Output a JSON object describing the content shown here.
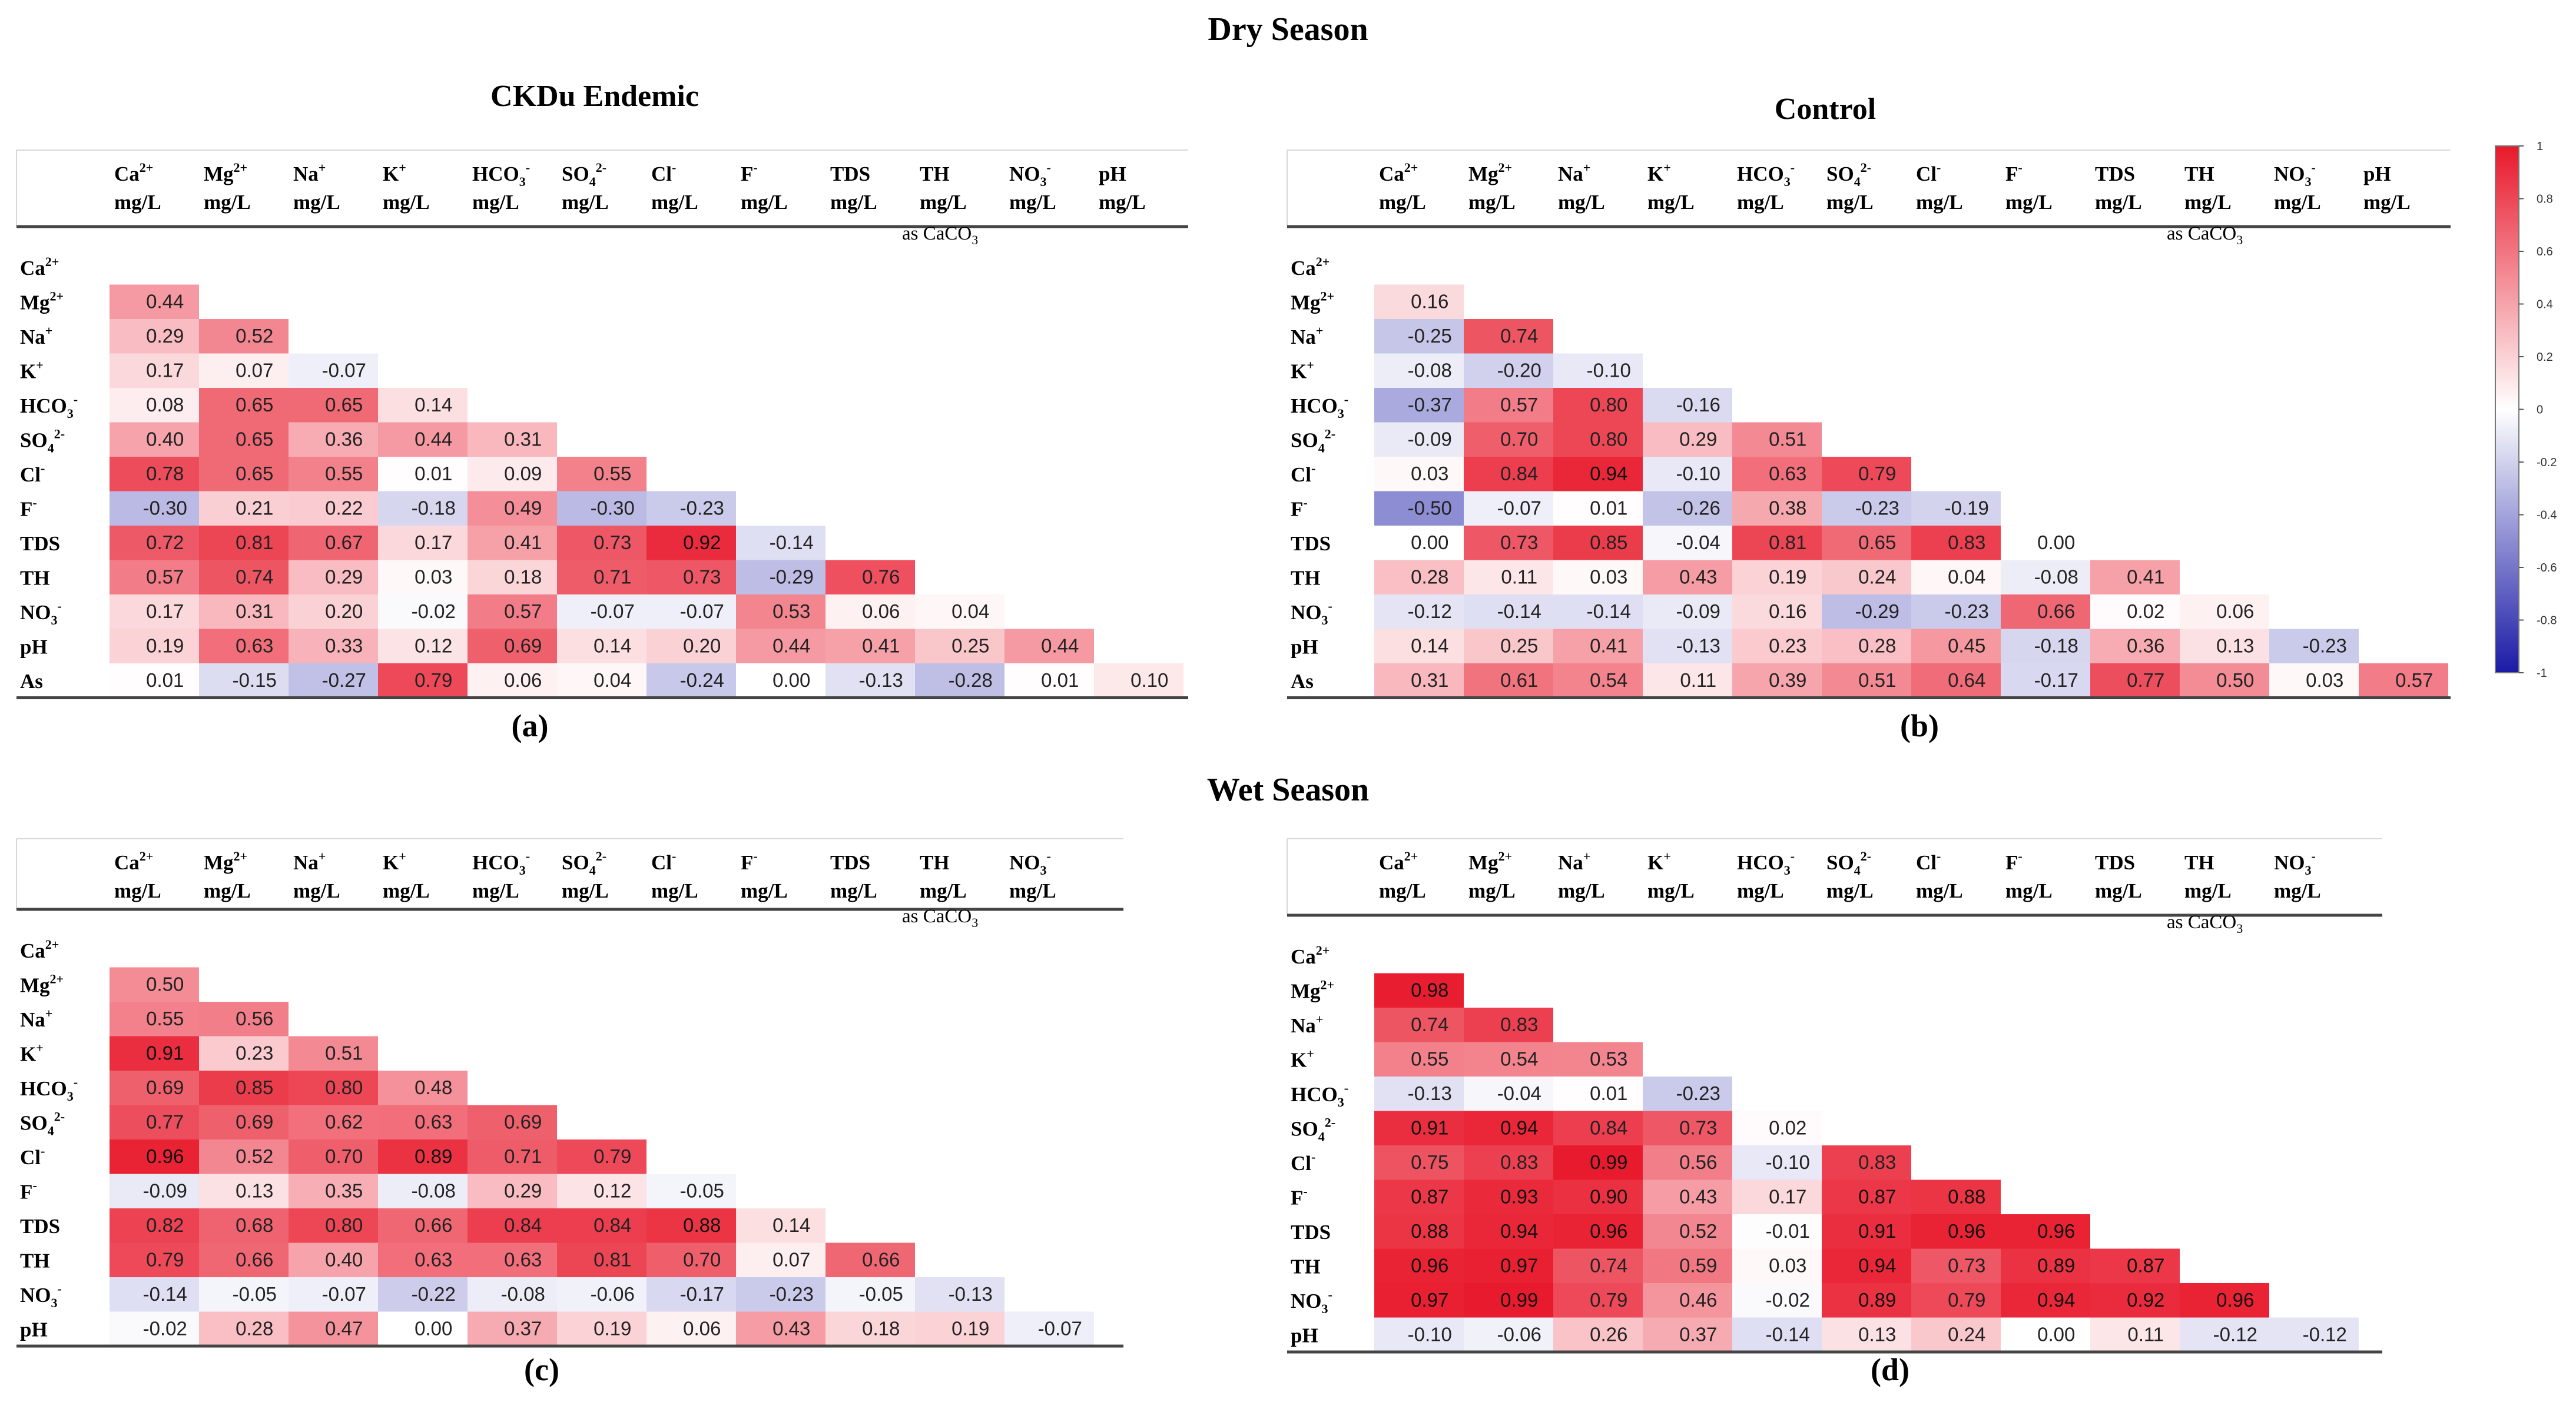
{
  "titles": {
    "dry_season": "Dry Season",
    "wet_season": "Wet Season",
    "ckdu_endemic": "CKDu Endemic",
    "control": "Control"
  },
  "panel_labels": [
    "(a)",
    "(b)",
    "(c)",
    "(d)"
  ],
  "colorbar": {
    "range": [
      -1,
      1
    ],
    "ticks": [
      "1",
      "0.8",
      "0.6",
      "0.4",
      "0.2",
      "0",
      "-0.2",
      "-0.4",
      "-0.6",
      "-0.8",
      "-1"
    ],
    "colors": {
      "positive": "#e8192c",
      "neutral": "#ffffff",
      "negative": "#1a1aa6"
    }
  },
  "chart_data": [
    {
      "type": "heatmap",
      "title": "CKDu Endemic",
      "season": "Dry Season",
      "panel": "(a)",
      "columns": [
        {
          "top": "Ca2+",
          "unit": "mg/L"
        },
        {
          "top": "Mg2+",
          "unit": "mg/L"
        },
        {
          "top": "Na+",
          "unit": "mg/L"
        },
        {
          "top": "K+",
          "unit": "mg/L"
        },
        {
          "top": "HCO3-",
          "unit": "mg/L"
        },
        {
          "top": "SO42-",
          "unit": "mg/L"
        },
        {
          "top": "Cl-",
          "unit": "mg/L"
        },
        {
          "top": "F-",
          "unit": "mg/L"
        },
        {
          "top": "TDS",
          "unit": "mg/L"
        },
        {
          "top": "TH",
          "unit": "mg/L",
          "note": "as CaCO3"
        },
        {
          "top": "NO3-",
          "unit": "mg/L"
        },
        {
          "top": "pH",
          "unit": "mg/L"
        }
      ],
      "rows": [
        "Ca2+",
        "Mg2+",
        "Na+",
        "K+",
        "HCO3-",
        "SO42-",
        "Cl-",
        "F-",
        "TDS",
        "TH",
        "NO3-",
        "pH",
        "As"
      ],
      "values": [
        [],
        [
          "0.44"
        ],
        [
          "0.29",
          "0.52"
        ],
        [
          "0.17",
          "0.07",
          "-0.07"
        ],
        [
          "0.08",
          "0.65",
          "0.65",
          "0.14"
        ],
        [
          "0.40",
          "0.65",
          "0.36",
          "0.44",
          "0.31"
        ],
        [
          "0.78",
          "0.65",
          "0.55",
          "0.01",
          "0.09",
          "0.55"
        ],
        [
          "-0.30",
          "0.21",
          "0.22",
          "-0.18",
          "0.49",
          "-0.30",
          "-0.23"
        ],
        [
          "0.72",
          "0.81",
          "0.67",
          "0.17",
          "0.41",
          "0.73",
          "0.92",
          "-0.14"
        ],
        [
          "0.57",
          "0.74",
          "0.29",
          "0.03",
          "0.18",
          "0.71",
          "0.73",
          "-0.29",
          "0.76"
        ],
        [
          "0.17",
          "0.31",
          "0.20",
          "-0.02",
          "0.57",
          "-0.07",
          "-0.07",
          "0.53",
          "0.06",
          "0.04"
        ],
        [
          "0.19",
          "0.63",
          "0.33",
          "0.12",
          "0.69",
          "0.14",
          "0.20",
          "0.44",
          "0.41",
          "0.25",
          "0.44"
        ],
        [
          "0.01",
          "-0.15",
          "-0.27",
          "0.79",
          "0.06",
          "0.04",
          "-0.24",
          "0.00",
          "-0.13",
          "-0.28",
          "0.01",
          "0.10"
        ]
      ]
    },
    {
      "type": "heatmap",
      "title": "Control",
      "season": "Dry Season",
      "panel": "(b)",
      "columns": [
        {
          "top": "Ca2+",
          "unit": "mg/L"
        },
        {
          "top": "Mg2+",
          "unit": "mg/L"
        },
        {
          "top": "Na+",
          "unit": "mg/L"
        },
        {
          "top": "K+",
          "unit": "mg/L"
        },
        {
          "top": "HCO3-",
          "unit": "mg/L"
        },
        {
          "top": "SO42-",
          "unit": "mg/L"
        },
        {
          "top": "Cl-",
          "unit": "mg/L"
        },
        {
          "top": "F-",
          "unit": "mg/L"
        },
        {
          "top": "TDS",
          "unit": "mg/L"
        },
        {
          "top": "TH",
          "unit": "mg/L",
          "note": "as CaCO3"
        },
        {
          "top": "NO3-",
          "unit": "mg/L"
        },
        {
          "top": "pH",
          "unit": "mg/L"
        }
      ],
      "rows": [
        "Ca2+",
        "Mg2+",
        "Na+",
        "K+",
        "HCO3-",
        "SO42-",
        "Cl-",
        "F-",
        "TDS",
        "TH",
        "NO3-",
        "pH",
        "As"
      ],
      "values": [
        [],
        [
          "0.16"
        ],
        [
          "-0.25",
          "0.74"
        ],
        [
          "-0.08",
          "-0.20",
          "-0.10"
        ],
        [
          "-0.37",
          "0.57",
          "0.80",
          "-0.16"
        ],
        [
          "-0.09",
          "0.70",
          "0.80",
          "0.29",
          "0.51"
        ],
        [
          "0.03",
          "0.84",
          "0.94",
          "-0.10",
          "0.63",
          "0.79"
        ],
        [
          "-0.50",
          "-0.07",
          "0.01",
          "-0.26",
          "0.38",
          "-0.23",
          "-0.19"
        ],
        [
          "0.00",
          "0.73",
          "0.85",
          "-0.04",
          "0.81",
          "0.65",
          "0.83",
          "0.00"
        ],
        [
          "0.28",
          "0.11",
          "0.03",
          "0.43",
          "0.19",
          "0.24",
          "0.04",
          "-0.08",
          "0.41"
        ],
        [
          "-0.12",
          "-0.14",
          "-0.14",
          "-0.09",
          "0.16",
          "-0.29",
          "-0.23",
          "0.66",
          "0.02",
          "0.06"
        ],
        [
          "0.14",
          "0.25",
          "0.41",
          "-0.13",
          "0.23",
          "0.28",
          "0.45",
          "-0.18",
          "0.36",
          "0.13",
          "-0.23"
        ],
        [
          "0.31",
          "0.61",
          "0.54",
          "0.11",
          "0.39",
          "0.51",
          "0.64",
          "-0.17",
          "0.77",
          "0.50",
          "0.03",
          "0.57"
        ]
      ]
    },
    {
      "type": "heatmap",
      "title": "CKDu Endemic",
      "season": "Wet Season",
      "panel": "(c)",
      "columns": [
        {
          "top": "Ca2+",
          "unit": "mg/L"
        },
        {
          "top": "Mg2+",
          "unit": "mg/L"
        },
        {
          "top": "Na+",
          "unit": "mg/L"
        },
        {
          "top": "K+",
          "unit": "mg/L"
        },
        {
          "top": "HCO3-",
          "unit": "mg/L"
        },
        {
          "top": "SO42-",
          "unit": "mg/L"
        },
        {
          "top": "Cl-",
          "unit": "mg/L"
        },
        {
          "top": "F-",
          "unit": "mg/L"
        },
        {
          "top": "TDS",
          "unit": "mg/L"
        },
        {
          "top": "TH",
          "unit": "mg/L",
          "note": "as CaCO3"
        },
        {
          "top": "NO3-",
          "unit": "mg/L"
        }
      ],
      "rows": [
        "Ca2+",
        "Mg2+",
        "Na+",
        "K+",
        "HCO3-",
        "SO42-",
        "Cl-",
        "F-",
        "TDS",
        "TH",
        "NO3-",
        "pH"
      ],
      "values": [
        [],
        [
          "0.50"
        ],
        [
          "0.55",
          "0.56"
        ],
        [
          "0.91",
          "0.23",
          "0.51"
        ],
        [
          "0.69",
          "0.85",
          "0.80",
          "0.48"
        ],
        [
          "0.77",
          "0.69",
          "0.62",
          "0.63",
          "0.69"
        ],
        [
          "0.96",
          "0.52",
          "0.70",
          "0.89",
          "0.71",
          "0.79"
        ],
        [
          "-0.09",
          "0.13",
          "0.35",
          "-0.08",
          "0.29",
          "0.12",
          "-0.05"
        ],
        [
          "0.82",
          "0.68",
          "0.80",
          "0.66",
          "0.84",
          "0.84",
          "0.88",
          "0.14"
        ],
        [
          "0.79",
          "0.66",
          "0.40",
          "0.63",
          "0.63",
          "0.81",
          "0.70",
          "0.07",
          "0.66"
        ],
        [
          "-0.14",
          "-0.05",
          "-0.07",
          "-0.22",
          "-0.08",
          "-0.06",
          "-0.17",
          "-0.23",
          "-0.05",
          "-0.13"
        ],
        [
          "-0.02",
          "0.28",
          "0.47",
          "0.00",
          "0.37",
          "0.19",
          "0.06",
          "0.43",
          "0.18",
          "0.19",
          "-0.07"
        ]
      ]
    },
    {
      "type": "heatmap",
      "title": "Control",
      "season": "Wet Season",
      "panel": "(d)",
      "columns": [
        {
          "top": "Ca2+",
          "unit": "mg/L"
        },
        {
          "top": "Mg2+",
          "unit": "mg/L"
        },
        {
          "top": "Na+",
          "unit": "mg/L"
        },
        {
          "top": "K+",
          "unit": "mg/L"
        },
        {
          "top": "HCO3-",
          "unit": "mg/L"
        },
        {
          "top": "SO42-",
          "unit": "mg/L"
        },
        {
          "top": "Cl-",
          "unit": "mg/L"
        },
        {
          "top": "F-",
          "unit": "mg/L"
        },
        {
          "top": "TDS",
          "unit": "mg/L"
        },
        {
          "top": "TH",
          "unit": "mg/L",
          "note": "as CaCO3"
        },
        {
          "top": "NO3-",
          "unit": "mg/L"
        }
      ],
      "rows": [
        "Ca2+",
        "Mg2+",
        "Na+",
        "K+",
        "HCO3-",
        "SO42-",
        "Cl-",
        "F-",
        "TDS",
        "TH",
        "NO3-",
        "pH"
      ],
      "values": [
        [],
        [
          "0.98"
        ],
        [
          "0.74",
          "0.83"
        ],
        [
          "0.55",
          "0.54",
          "0.53"
        ],
        [
          "-0.13",
          "-0.04",
          "0.01",
          "-0.23"
        ],
        [
          "0.91",
          "0.94",
          "0.84",
          "0.73",
          "0.02"
        ],
        [
          "0.75",
          "0.83",
          "0.99",
          "0.56",
          "-0.10",
          "0.83"
        ],
        [
          "0.87",
          "0.93",
          "0.90",
          "0.43",
          "0.17",
          "0.87",
          "0.88"
        ],
        [
          "0.88",
          "0.94",
          "0.96",
          "0.52",
          "-0.01",
          "0.91",
          "0.96",
          "0.96"
        ],
        [
          "0.96",
          "0.97",
          "0.74",
          "0.59",
          "0.03",
          "0.94",
          "0.73",
          "0.89",
          "0.87"
        ],
        [
          "0.97",
          "0.99",
          "0.79",
          "0.46",
          "-0.02",
          "0.89",
          "0.79",
          "0.94",
          "0.92",
          "0.96"
        ],
        [
          "-0.10",
          "-0.06",
          "0.26",
          "0.37",
          "-0.14",
          "0.13",
          "0.24",
          "0.00",
          "0.11",
          "-0.12",
          "-0.12"
        ]
      ]
    }
  ]
}
